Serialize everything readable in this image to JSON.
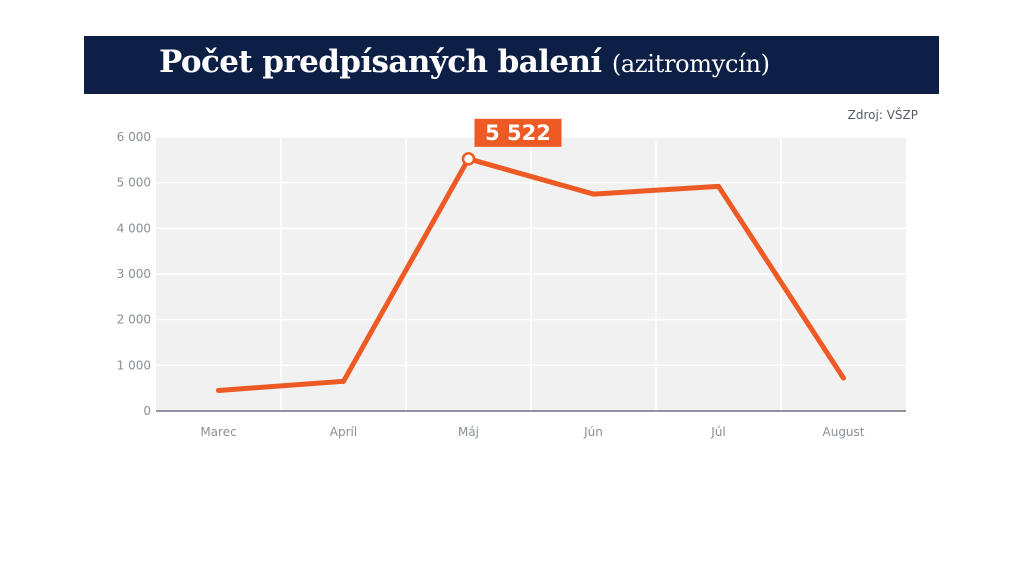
{
  "header": {
    "title": "Počet predpísaných balení",
    "subtitle": "(azitromycín)",
    "background_color": "#0d1f45"
  },
  "source": "Zdroj: VŠZP",
  "chart_data": {
    "type": "line",
    "categories": [
      "Marec",
      "Apríl",
      "Máj",
      "Jún",
      "Júl",
      "August"
    ],
    "series": [
      {
        "values": [
          450,
          650,
          5522,
          4750,
          4920,
          720
        ],
        "color": "#ee5a24"
      }
    ],
    "ylim": [
      0,
      6000
    ],
    "yticks": [
      0,
      1000,
      2000,
      3000,
      4000,
      5000,
      6000
    ],
    "ytick_labels": [
      "0",
      "1 000",
      "2 000",
      "3 000",
      "4 000",
      "5 000",
      "6 000"
    ],
    "grid": true,
    "plot_background": "#f1f1f1",
    "annotation": {
      "category": "Máj",
      "label": "5 522",
      "color": "#ee5a24"
    }
  }
}
